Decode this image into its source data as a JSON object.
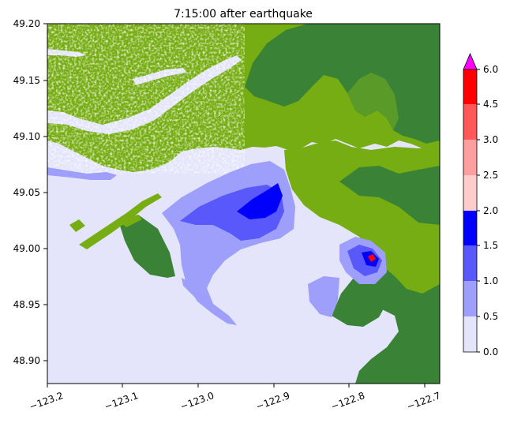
{
  "title": "7:15:00 after earthquake",
  "map": {
    "x_range": [
      -123.2,
      -122.69
    ],
    "y_range": [
      48.88,
      49.2
    ],
    "x_ticks": [
      "−123.2",
      "−123.1",
      "−123.0",
      "−122.9",
      "−122.8",
      "−122.7"
    ],
    "x_tick_values": [
      -123.2,
      -123.1,
      -123.0,
      -122.9,
      -122.8,
      -122.7
    ],
    "y_ticks": [
      "48.90",
      "48.95",
      "49.00",
      "49.05",
      "49.10",
      "49.15",
      "49.20"
    ],
    "y_tick_values": [
      48.9,
      48.95,
      49.0,
      49.05,
      49.1,
      49.15,
      49.2
    ],
    "colors": {
      "water": "#e4e4fb",
      "land_light": "#76ad12",
      "land_dark": "#3a8236",
      "land_mid": "#5a9a28"
    }
  },
  "colorbar": {
    "labels": [
      "0.0",
      "0.5",
      "1.0",
      "1.5",
      "2.0",
      "2.5",
      "3.0",
      "4.5",
      "6.0"
    ],
    "colors": [
      "#e4e4fb",
      "#9e9efb",
      "#5858fb",
      "#0000fb",
      "#ffcccc",
      "#ff9e9e",
      "#ff5858",
      "#ff0000"
    ],
    "extend_color": "#ff00ff"
  }
}
